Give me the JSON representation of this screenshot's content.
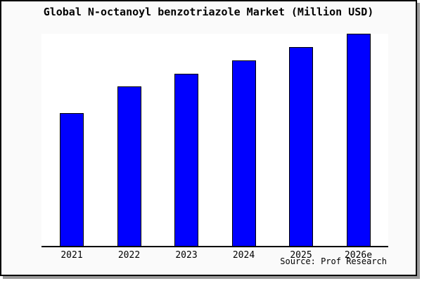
{
  "title": "Global N-octanoyl benzotriazole Market (Million USD)",
  "source_credit": "Source: Prof Research",
  "colors": {
    "bar_fill": "#0000ff",
    "bar_border": "#000000",
    "frame_background": "#fafafa",
    "plot_background": "#ffffff",
    "axis": "#000000",
    "frame_border": "#000000",
    "frame_shadow": "#999999"
  },
  "chart_data": {
    "type": "bar",
    "title": "Global N-octanoyl benzotriazole Market (Million USD)",
    "categories": [
      "2021",
      "2022",
      "2023",
      "2024",
      "2025",
      "2026e"
    ],
    "values": [
      100,
      120,
      130,
      140,
      150,
      160
    ],
    "value_note": "No y-axis or data labels shown; values are relative units estimated from bar heights (2021 = 100).",
    "xlabel": "",
    "ylabel": "",
    "ylim": [
      0,
      160
    ],
    "grid": false,
    "legend": false,
    "annotations": [
      "Source: Prof Research"
    ]
  }
}
